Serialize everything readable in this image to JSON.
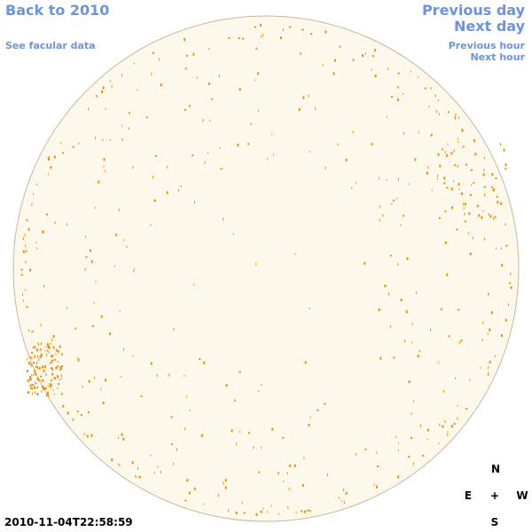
{
  "header": {
    "back_link": "Back to 2010",
    "facular_link": "See facular data",
    "previous_day": "Previous day",
    "next_day": "Next day",
    "previous_hour": "Previous hour",
    "next_hour": "Next hour"
  },
  "timestamp": "2010-11-04T22:58:59",
  "compass": {
    "north": "N",
    "east": "E",
    "center": "+",
    "west": "W",
    "south": "S"
  }
}
